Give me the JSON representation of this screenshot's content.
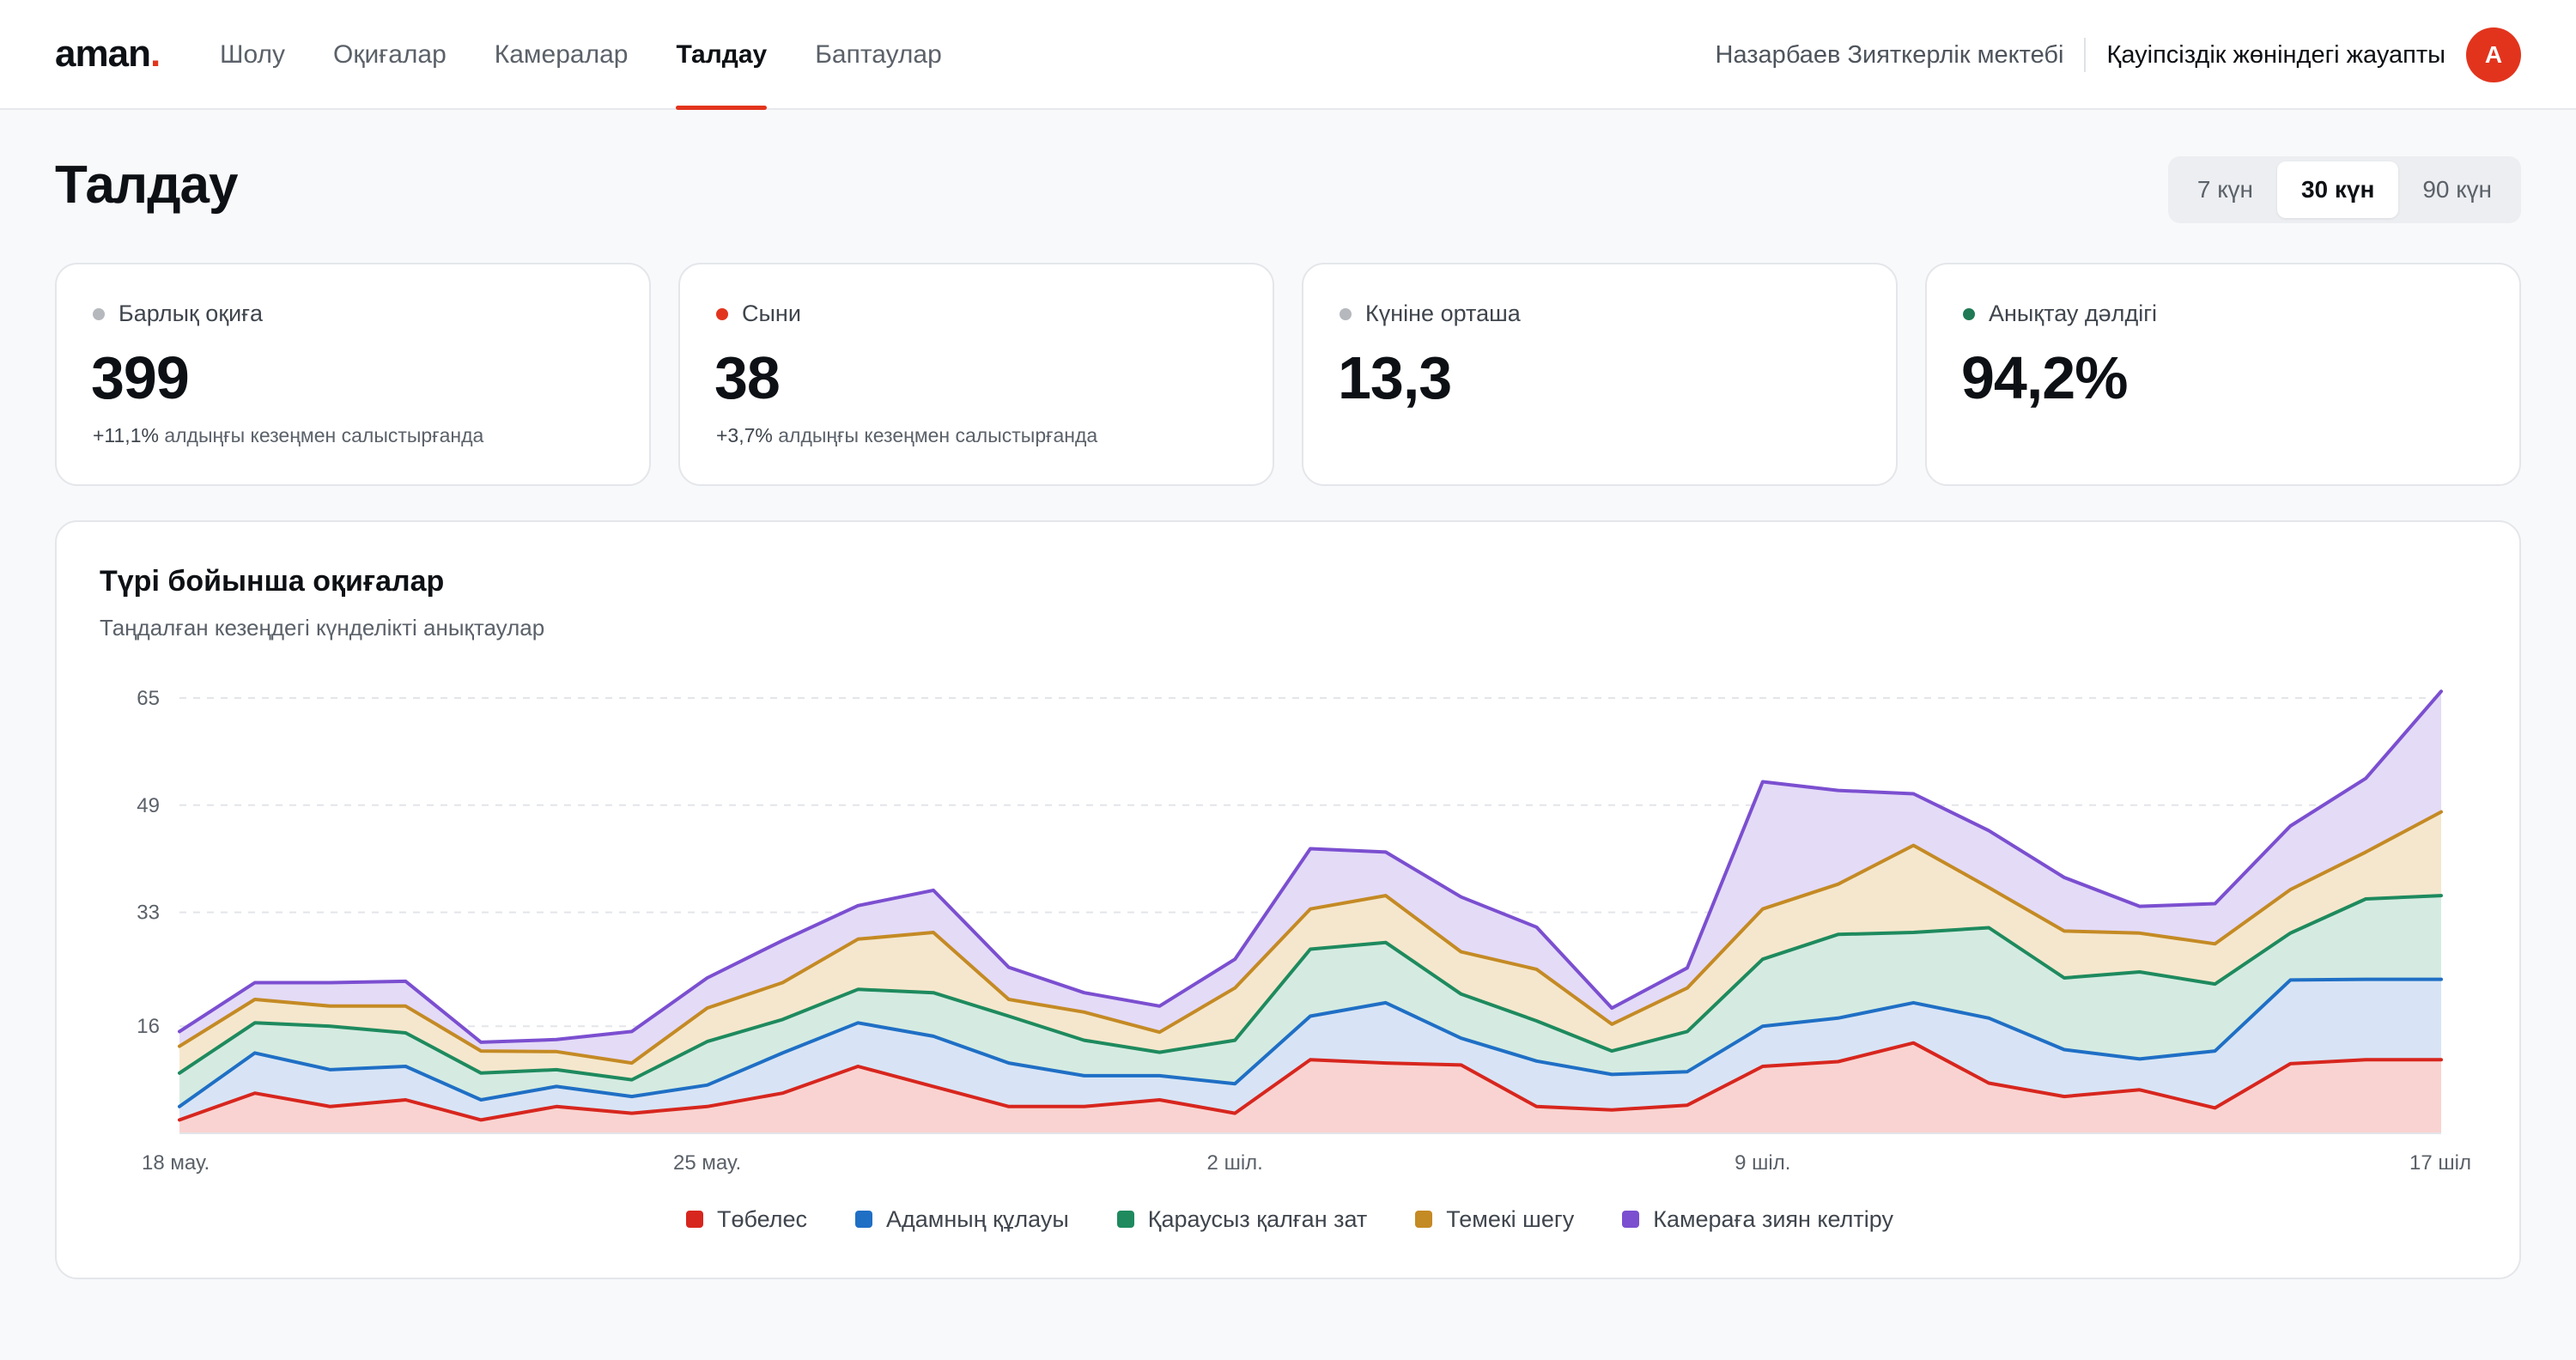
{
  "header": {
    "logo": "aman",
    "logo_dot": ".",
    "nav": [
      {
        "label": "Шолу",
        "active": false
      },
      {
        "label": "Оқиғалар",
        "active": false
      },
      {
        "label": "Камералар",
        "active": false
      },
      {
        "label": "Талдау",
        "active": true
      },
      {
        "label": "Баптаулар",
        "active": false
      }
    ],
    "organization": "Назарбаев Зияткерлік мектебі",
    "role": "Қауіпсіздік жөніндегі жауапты",
    "avatar_initial": "A"
  },
  "page": {
    "title": "Талдау",
    "ranges": [
      {
        "label": "7 күн",
        "active": false
      },
      {
        "label": "30 күн",
        "active": true
      },
      {
        "label": "90 күн",
        "active": false
      }
    ]
  },
  "stats": [
    {
      "label": "Барлық оқиға",
      "value": "399",
      "change": "+11,1%",
      "change_text": "алдыңғы кезеңмен салыстырғанда",
      "dot_color": "#b5b8bd"
    },
    {
      "label": "Сыни",
      "value": "38",
      "change": "+3,7%",
      "change_text": "алдыңғы кезеңмен салыстырғанда",
      "dot_color": "#e2341d"
    },
    {
      "label": "Күніне орташа",
      "value": "13,3",
      "change": "",
      "change_text": "",
      "dot_color": "#b5b8bd"
    },
    {
      "label": "Анықтау дәлдігі",
      "value": "94,2%",
      "change": "",
      "change_text": "",
      "dot_color": "#1f7a55"
    }
  ],
  "chart_card": {
    "title": "Түрі бойынша оқиғалар",
    "subtitle": "Таңдалған кезеңдегі күнделікті анықтаулар"
  },
  "chart_data": {
    "type": "area",
    "stacked": true,
    "x_count": 31,
    "x_tick_labels": [
      {
        "index": 0,
        "label": "18 мау."
      },
      {
        "index": 7,
        "label": "25 мау."
      },
      {
        "index": 14,
        "label": "2 шіл."
      },
      {
        "index": 21,
        "label": "9 шіл."
      },
      {
        "index": 29,
        "label": "17 шіл"
      }
    ],
    "y_ticks": [
      16,
      33,
      49,
      65
    ],
    "ylim": [
      0,
      65
    ],
    "grid": true,
    "legend_position": "bottom",
    "series": [
      {
        "name": "Төбелес",
        "color": "#d7261e",
        "fill": "#f9d3d1",
        "values": [
          2,
          6,
          4,
          5,
          2,
          4,
          3,
          4,
          6,
          10,
          7,
          4,
          4,
          5,
          3,
          11,
          10.5,
          10.2,
          4,
          3.5,
          4.2,
          10,
          10.7,
          13.5,
          7.5,
          5.5,
          6.5,
          3.8,
          10.4,
          11,
          11
        ]
      },
      {
        "name": "Адамның құлауы",
        "color": "#1f6fc5",
        "fill": "#d8e4f5",
        "values": [
          2,
          6,
          5.5,
          5,
          3,
          3,
          2.5,
          3.2,
          6,
          6.5,
          7.5,
          6.5,
          4.6,
          3.6,
          4.4,
          6.5,
          9,
          4,
          6.8,
          5.3,
          5,
          6,
          6.5,
          6,
          9.7,
          7,
          4.6,
          8.5,
          12.5,
          12,
          12
        ]
      },
      {
        "name": "Қараусыз қалған зат",
        "color": "#1e8a5e",
        "fill": "#d5ebe1",
        "values": [
          5,
          4.5,
          6.5,
          5,
          4,
          2.5,
          2.5,
          6.5,
          5,
          5,
          6.5,
          7,
          5.3,
          3.5,
          6.5,
          10,
          9,
          6.6,
          6,
          3.5,
          6,
          10,
          12.5,
          10.5,
          13.5,
          10.7,
          13,
          10,
          7,
          12,
          12.5
        ]
      },
      {
        "name": "Темекі шегу",
        "color": "#c48a24",
        "fill": "#f5e7cd",
        "values": [
          4,
          3.5,
          3,
          4,
          3.3,
          2.7,
          2.5,
          5,
          5.5,
          7.5,
          9,
          2.5,
          4.2,
          3,
          7.8,
          6,
          7,
          6.3,
          7.7,
          4,
          6.5,
          7.5,
          7.5,
          13,
          6,
          7,
          5.8,
          6,
          6.5,
          7,
          12.5
        ]
      },
      {
        "name": "Камераға зиян келтіру",
        "color": "#7b4fd0",
        "fill": "#e4dbf7",
        "values": [
          2.2,
          2.5,
          3.5,
          3.7,
          1.3,
          1.8,
          4.7,
          4.5,
          6.3,
          5,
          6.3,
          4.8,
          2.9,
          3.9,
          4.3,
          9,
          6.5,
          8.2,
          6.3,
          2.4,
          3,
          19,
          14,
          7.7,
          8.5,
          8,
          4,
          6,
          9.5,
          11,
          18
        ]
      }
    ]
  }
}
